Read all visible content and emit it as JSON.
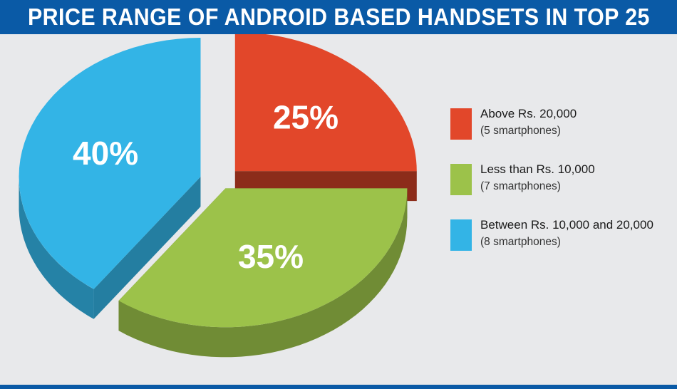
{
  "header": {
    "title": "PRICE RANGE OF ANDROID BASED HANDSETS IN TOP 25"
  },
  "colors": {
    "header_bg": "#0a5aa6",
    "page_bg": "#e8e9eb"
  },
  "chart_data": {
    "type": "pie",
    "title": "PRICE RANGE OF ANDROID BASED HANDSETS IN TOP 25",
    "style": "3d-exploded",
    "legend_position": "right",
    "slices": [
      {
        "key": "above",
        "label": "Above Rs. 20,000",
        "sublabel": "(5 smartphones)",
        "value": 25,
        "display": "25%",
        "color": "#e2472a",
        "count": 5
      },
      {
        "key": "less",
        "label": "Less than Rs. 10,000",
        "sublabel": "(7 smartphones)",
        "value": 35,
        "display": "35%",
        "color": "#9cc24a",
        "count": 7
      },
      {
        "key": "between",
        "label": "Between Rs. 10,000 and 20,000",
        "sublabel": "(8 smartphones)",
        "value": 40,
        "display": "40%",
        "color": "#33b4e6",
        "count": 8
      }
    ]
  }
}
